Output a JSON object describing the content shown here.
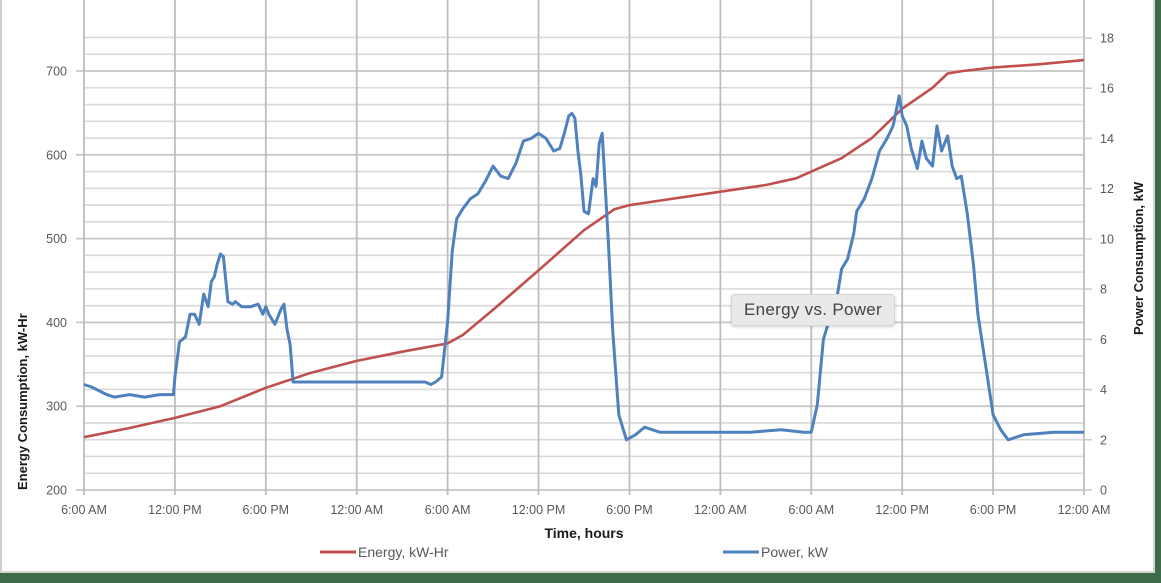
{
  "chart_data": {
    "type": "line",
    "title": "",
    "xlabel": "Time, hours",
    "ylabel": "Energy Consumption, kW-Hr",
    "y2label": "Power Consumption, kW",
    "x_tick_labels": [
      "6:00 AM",
      "12:00 PM",
      "6:00 PM",
      "12:00 AM",
      "6:00 AM",
      "12:00 PM",
      "6:00 PM",
      "12:00 AM",
      "6:00 AM",
      "12:00 PM",
      "6:00 PM",
      "12:00 AM"
    ],
    "x_tick_hours": [
      0,
      6,
      12,
      18,
      24,
      30,
      36,
      42,
      48,
      54,
      60,
      66
    ],
    "xlim_hours": [
      0,
      66
    ],
    "ylim": [
      200,
      750
    ],
    "y_ticks": [
      200,
      300,
      400,
      500,
      600,
      700
    ],
    "y_minor_step": 20,
    "y2lim": [
      0,
      19
    ],
    "y2_ticks": [
      0,
      2,
      4,
      6,
      8,
      10,
      12,
      14,
      16,
      18
    ],
    "grid": true,
    "legend_position": "bottom",
    "tooltip": "Energy vs. Power",
    "series": [
      {
        "name": "Energy, kW-Hr",
        "axis": "left",
        "color": "#c0504d",
        "x_hours": [
          0,
          3,
          6,
          9,
          12,
          15,
          18,
          21,
          24,
          25,
          27,
          30,
          33,
          35,
          36,
          39,
          42,
          45,
          47,
          48,
          50,
          52,
          54,
          56,
          57,
          58,
          60,
          63,
          66
        ],
        "values": [
          263,
          274,
          286,
          300,
          322,
          340,
          354,
          365,
          375,
          385,
          415,
          462,
          510,
          535,
          540,
          548,
          556,
          564,
          572,
          580,
          596,
          620,
          655,
          680,
          697,
          700,
          704,
          708,
          713
        ]
      },
      {
        "name": "Power, kW",
        "axis": "right",
        "color": "#4f81bd",
        "x_hours": [
          0,
          0.5,
          1.5,
          2,
          3,
          4,
          5,
          5.9,
          6,
          6.3,
          6.7,
          7,
          7.3,
          7.6,
          7.9,
          8.2,
          8.4,
          8.6,
          8.8,
          9,
          9.2,
          9.5,
          9.8,
          10,
          10.4,
          11,
          11.5,
          11.8,
          12,
          12.2,
          12.6,
          13,
          13.2,
          13.4,
          13.6,
          13.8,
          14,
          14.3,
          14.6,
          14.8,
          15,
          15.5,
          16,
          18,
          21,
          22.5,
          22.9,
          23.2,
          23.6,
          24,
          24.3,
          24.6,
          25,
          25.5,
          26,
          26.5,
          27,
          27.5,
          28,
          28.5,
          29,
          29.5,
          30,
          30.5,
          31,
          31.4,
          31.7,
          32,
          32.2,
          32.4,
          32.6,
          32.8,
          33,
          33.3,
          33.6,
          33.8,
          34,
          34.2,
          34.6,
          34.9,
          35.3,
          35.8,
          36.4,
          37,
          38,
          40,
          42,
          44,
          46,
          47.5,
          47.8,
          48,
          48.4,
          48.8,
          49.2,
          49.6,
          50,
          50.4,
          50.8,
          51,
          51.5,
          52,
          52.5,
          53,
          53.4,
          53.8,
          54,
          54.3,
          54.6,
          55,
          55.3,
          55.6,
          56,
          56.3,
          56.6,
          57,
          57.3,
          57.6,
          57.9,
          58.3,
          58.7,
          59,
          59.5,
          60,
          60.5,
          61,
          62,
          64,
          65.8,
          66
        ],
        "values": [
          4.2,
          4.1,
          3.8,
          3.7,
          3.8,
          3.7,
          3.8,
          3.8,
          4.5,
          5.9,
          6.1,
          7.0,
          7.0,
          6.6,
          7.8,
          7.3,
          8.3,
          8.5,
          9.0,
          9.4,
          9.3,
          7.5,
          7.4,
          7.5,
          7.3,
          7.3,
          7.4,
          7.0,
          7.3,
          7.0,
          6.6,
          7.2,
          7.4,
          6.4,
          5.8,
          4.3,
          4.3,
          4.3,
          4.3,
          4.3,
          4.3,
          4.3,
          4.3,
          4.3,
          4.3,
          4.3,
          4.2,
          4.3,
          4.5,
          6.7,
          9.5,
          10.8,
          11.2,
          11.6,
          11.8,
          12.3,
          12.9,
          12.5,
          12.4,
          13.0,
          13.9,
          14.0,
          14.2,
          14.0,
          13.5,
          13.6,
          14.2,
          14.9,
          15.0,
          14.8,
          13.5,
          12.5,
          11.1,
          11.0,
          12.4,
          12.1,
          13.8,
          14.2,
          10.0,
          6.3,
          3.0,
          2.0,
          2.2,
          2.5,
          2.3,
          2.3,
          2.3,
          2.3,
          2.4,
          2.3,
          2.3,
          2.3,
          3.4,
          6.0,
          6.8,
          7.3,
          8.8,
          9.2,
          10.2,
          11.1,
          11.6,
          12.4,
          13.5,
          14.0,
          14.5,
          15.7,
          14.9,
          14.5,
          13.6,
          12.8,
          13.9,
          13.2,
          12.9,
          14.5,
          13.5,
          14.1,
          12.9,
          12.4,
          12.5,
          11.0,
          9.0,
          7.0,
          5.0,
          3.0,
          2.4,
          2.0,
          2.2,
          2.3,
          2.3,
          2.3,
          2.4,
          2.6
        ]
      }
    ]
  },
  "legend": {
    "energy_label": "Energy, kW-Hr",
    "power_label": "Power, kW"
  },
  "axes": {
    "x_title": "Time, hours",
    "y_left_title": "Energy Consumption, kW-Hr",
    "y_right_title": "Power Consumption, kW"
  },
  "tooltip": {
    "text": "Energy vs. Power"
  },
  "colors": {
    "energy": "#c0504d",
    "power": "#4f81bd",
    "grid": "#c8c8c8",
    "frame_outer": "#3d6b4a"
  }
}
